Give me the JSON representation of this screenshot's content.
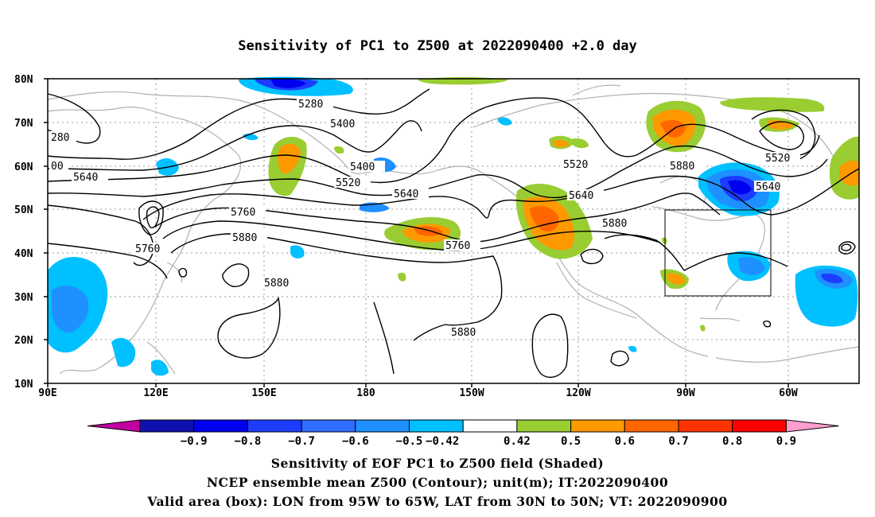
{
  "title": "Sensitivity of PC1 to Z500 at 2022090400 +2.0 day",
  "captions": [
    "Sensitivity of EOF PC1 to Z500 field (Shaded)",
    "NCEP ensemble mean Z500 (Contour); unit(m); IT:2022090400",
    "Valid area (box): LON from 95W to 65W, LAT from 30N to 50N; VT: 2022090900"
  ],
  "lat_labels": [
    "80N",
    "70N",
    "60N",
    "50N",
    "40N",
    "30N",
    "20N",
    "10N"
  ],
  "lon_labels": [
    "90E",
    "120E",
    "150E",
    "180",
    "150W",
    "120W",
    "90W",
    "60W"
  ],
  "contour_labels": [
    "5280",
    "5400",
    "5400",
    "5520",
    "5520",
    "5520",
    "280",
    "00",
    "5640",
    "5640",
    "5640",
    "5640",
    "5760",
    "5760",
    "5760",
    "5880",
    "5880",
    "5880",
    "5880"
  ],
  "colorbar": {
    "labels": [
      "-0.9",
      "-0.8",
      "-0.7",
      "-0.6",
      "-0.5",
      "-0.42",
      "0.42",
      "0.5",
      "0.6",
      "0.7",
      "0.8",
      "0.9"
    ],
    "colors": [
      "#1010b0",
      "#0000f0",
      "#1c3cff",
      "#2f6cff",
      "#1e90ff",
      "#00c0ff",
      "#ffffff",
      "#9acd32",
      "#ff9900",
      "#ff6600",
      "#ff3300",
      "#ff0000"
    ],
    "low_extend_color": "#c000a0",
    "high_extend_color": "#ff9ecf"
  },
  "valid_box": {
    "lon_w": "95W",
    "lon_e": "65W",
    "lat_s": "30N",
    "lat_n": "50N"
  }
}
